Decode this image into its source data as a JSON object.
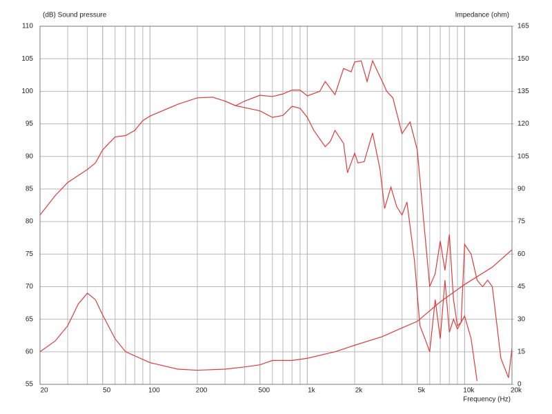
{
  "chart_data": {
    "type": "line",
    "ylabel": "(dB)  Sound pressure",
    "y2label": "Impedance  (ohm)",
    "xlabel": "Frequency  (Hz)",
    "xscale": "log",
    "grid": true,
    "xlim": [
      20,
      20000
    ],
    "xticks": [
      20,
      50,
      100,
      200,
      500,
      {
        "value": 1000,
        "label": "1k"
      },
      {
        "value": 2000,
        "label": "2k"
      },
      {
        "value": 5000,
        "label": "5k"
      },
      {
        "value": 10000,
        "label": "10k"
      },
      {
        "value": 20000,
        "label": "20k"
      }
    ],
    "ylim": [
      55,
      110
    ],
    "yticks": [
      55,
      60,
      65,
      70,
      75,
      80,
      85,
      90,
      95,
      100,
      105,
      110
    ],
    "y2lim": [
      0,
      165
    ],
    "y2ticks": [
      0,
      15,
      30,
      45,
      60,
      75,
      90,
      105,
      120,
      135,
      150,
      165
    ],
    "series": [
      {
        "color": "#e03a3a",
        "x": [
          20,
          25,
          30,
          40,
          45,
          50,
          60,
          70,
          80,
          90,
          100,
          150,
          200,
          250,
          300,
          350,
          400,
          500,
          600,
          700,
          800,
          900,
          1000,
          1200,
          1300,
          1500,
          1700,
          1900,
          2000,
          2200,
          2400,
          2600,
          2800,
          3000,
          3200,
          3500,
          4000,
          4500,
          5000,
          5500,
          6000,
          6500,
          7000,
          7500,
          8000,
          8500,
          9000,
          9500,
          10000,
          11000,
          12000,
          13000,
          14000,
          15000,
          17000,
          19000,
          20000
        ],
        "values": [
          81,
          84,
          86,
          88,
          89,
          91,
          93,
          93.2,
          94,
          95.5,
          96.2,
          98,
          99,
          99.1,
          98.5,
          97.8,
          98.5,
          99.4,
          99.2,
          99.6,
          100.2,
          100.2,
          99.3,
          100,
          101.5,
          99.5,
          103.5,
          103,
          104.5,
          104.7,
          101.5,
          104.7,
          103,
          101.5,
          100,
          99,
          93.5,
          95.3,
          91,
          80,
          70,
          72,
          77,
          72.5,
          78,
          68,
          64,
          64.5,
          76.5,
          75,
          71,
          70,
          71,
          70,
          59,
          56,
          60.5
        ]
      },
      {
        "color": "#e03a3a",
        "x": [
          300,
          350,
          400,
          500,
          600,
          700,
          800,
          900,
          1000,
          1100,
          1300,
          1400,
          1500,
          1700,
          1800,
          2000,
          2100,
          2300,
          2600,
          2900,
          3100,
          3400,
          3700,
          4000,
          4300,
          4800,
          5200,
          5600,
          6000,
          6500,
          7000,
          7500,
          8000,
          8500,
          9000,
          10000,
          11000,
          12000
        ],
        "values": [
          98.5,
          97.8,
          97.5,
          97,
          96,
          96.3,
          97.7,
          97.4,
          96,
          94,
          91.5,
          92.3,
          94,
          92,
          87.5,
          90.5,
          89,
          89.2,
          93.6,
          88,
          82,
          85.3,
          82.3,
          81,
          83,
          74,
          64,
          62,
          60,
          68,
          62,
          71,
          63,
          65,
          63.5,
          65.5,
          62,
          55.5
        ]
      },
      {
        "color": "#e03a3a",
        "axis": "y2",
        "x": [
          20,
          25,
          30,
          35,
          40,
          45,
          50,
          60,
          70,
          100,
          150,
          200,
          300,
          400,
          500,
          600,
          800,
          1000,
          1500,
          2000,
          3000,
          4000,
          5000,
          7000,
          10000,
          15000,
          20000
        ],
        "values": [
          15,
          20,
          27,
          37,
          42,
          39,
          32,
          21,
          15,
          10,
          7,
          6.5,
          7,
          8,
          9,
          11,
          11,
          12,
          15,
          18,
          22,
          26,
          29,
          38,
          46,
          54,
          62
        ]
      }
    ]
  }
}
